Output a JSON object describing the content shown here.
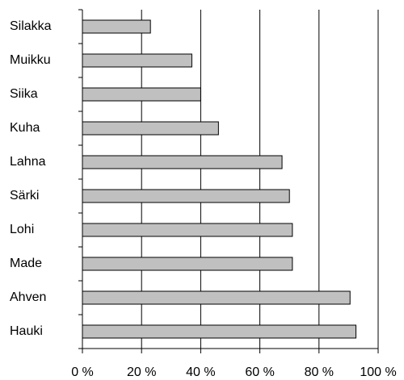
{
  "chart_data": {
    "type": "barh",
    "categories": [
      "Silakka",
      "Muikku",
      "Siika",
      "Kuha",
      "Lahna",
      "Särki",
      "Lohi",
      "Made",
      "Ahven",
      "Hauki"
    ],
    "values": [
      23,
      37,
      40,
      46,
      67.5,
      70,
      71,
      71,
      90.5,
      92.5
    ],
    "color": "#c0c0c0",
    "xlim": [
      0,
      100
    ],
    "xticks": [
      {
        "value": 0,
        "label": "0 %"
      },
      {
        "value": 20,
        "label": "20 %"
      },
      {
        "value": 40,
        "label": "40 %"
      },
      {
        "value": 60,
        "label": "60 %"
      },
      {
        "value": 80,
        "label": "80 %"
      },
      {
        "value": 100,
        "label": "100 %"
      }
    ],
    "grid": true
  }
}
